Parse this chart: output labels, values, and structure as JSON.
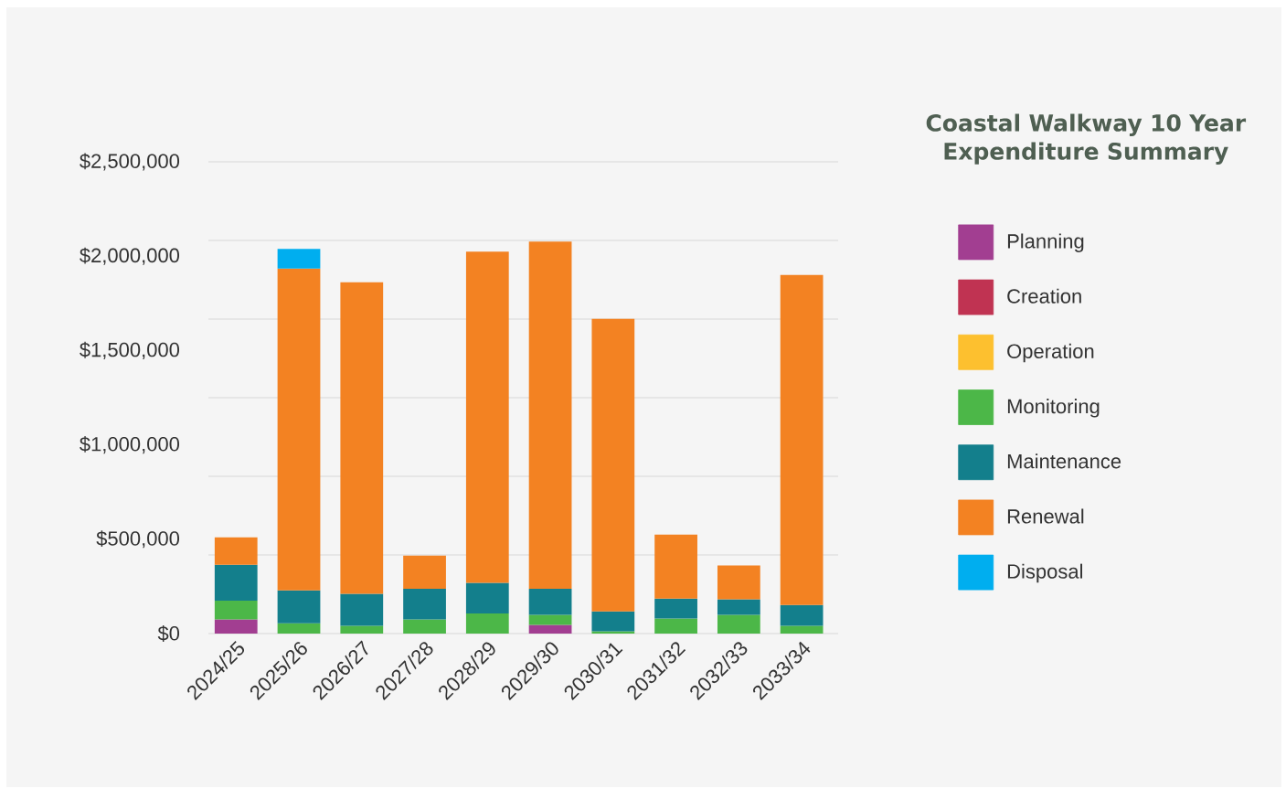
{
  "chart_data": {
    "type": "bar",
    "stacked": true,
    "title": "Coastal Walkway 10 Year Expenditure Summary",
    "categories": [
      "2024/25",
      "2025/26",
      "2026/27",
      "2027/28",
      "2028/29",
      "2029/30",
      "2030/31",
      "2031/32",
      "2032/33",
      "2033/34"
    ],
    "series": [
      {
        "name": "Planning",
        "color": "#a23e91",
        "values": [
          75000,
          null,
          null,
          null,
          null,
          46000,
          null,
          null,
          null,
          null
        ]
      },
      {
        "name": "Creation",
        "color": "#c03352",
        "values": [
          null,
          null,
          null,
          null,
          null,
          null,
          null,
          null,
          null,
          null
        ]
      },
      {
        "name": "Operation",
        "color": "#fdc02f",
        "values": [
          null,
          null,
          null,
          null,
          null,
          null,
          null,
          null,
          null,
          null
        ]
      },
      {
        "name": "Monitoring",
        "color": "#4cb748",
        "values": [
          100000,
          54000,
          41000,
          75000,
          107000,
          53000,
          12000,
          80000,
          99000,
          41000
        ]
      },
      {
        "name": "Maintenance",
        "color": "#137f8c",
        "values": [
          189000,
          175000,
          170000,
          163000,
          162000,
          139000,
          105000,
          105000,
          83000,
          110000
        ]
      },
      {
        "name": "Renewal",
        "color": "#f38222",
        "values": [
          146000,
          1705000,
          1651000,
          175000,
          1755000,
          1839000,
          1551000,
          339000,
          179000,
          1750000
        ]
      },
      {
        "name": "Disposal",
        "color": "#00aeef",
        "values": [
          null,
          105000,
          null,
          null,
          null,
          null,
          null,
          null,
          null,
          null
        ]
      }
    ],
    "ylim": [
      0,
      2500000
    ],
    "yticks": [
      {
        "value": 0,
        "label": "$0"
      },
      {
        "value": 416667,
        "label": null
      },
      {
        "value": 500000,
        "label": "$500,000"
      },
      {
        "value": 833333,
        "label": null
      },
      {
        "value": 1000000,
        "label": "$1,000,000"
      },
      {
        "value": 1250000,
        "label": null
      },
      {
        "value": 1500000,
        "label": "$1,500,000"
      },
      {
        "value": 1666667,
        "label": null
      },
      {
        "value": 2000000,
        "label": "$2,000,000"
      },
      {
        "value": 2083333,
        "label": null
      },
      {
        "value": 2500000,
        "label": "$2,500,000"
      }
    ],
    "grid": "y",
    "legend": "right"
  }
}
